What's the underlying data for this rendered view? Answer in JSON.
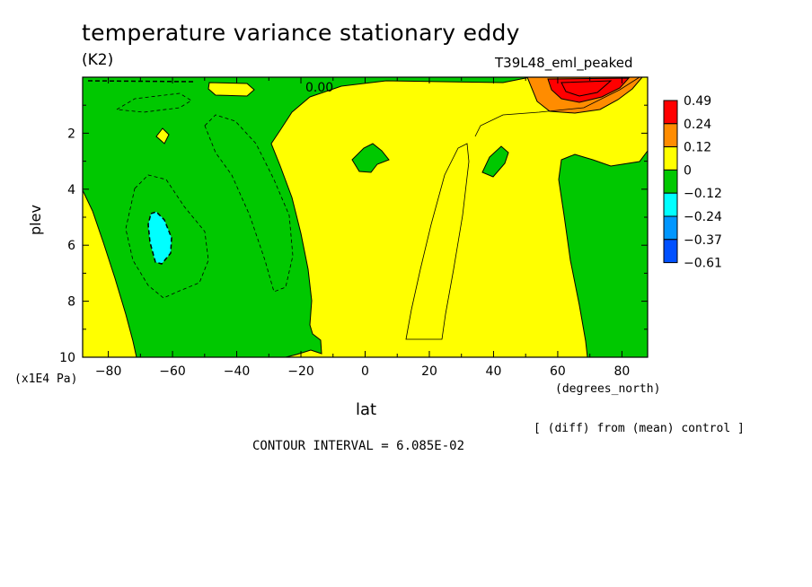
{
  "chart_data": {
    "type": "heatmap",
    "title": "temperature variance stationary eddy",
    "units": "(K2)",
    "run_label": "T39L48_eml_peaked",
    "xlabel": "lat",
    "x_units": "(degrees_north)",
    "ylabel": "plev",
    "y_units": "(x1E4 Pa)",
    "xlim": [
      -88,
      88
    ],
    "ylim": [
      10,
      0
    ],
    "x_ticks": [
      -80,
      -60,
      -40,
      -20,
      0,
      20,
      40,
      60,
      80
    ],
    "x_tick_labels": [
      "−80",
      "−60",
      "−40",
      "−20",
      "0",
      "20",
      "40",
      "60",
      "80"
    ],
    "y_ticks": [
      2,
      4,
      6,
      8,
      10
    ],
    "y_tick_labels": [
      "2",
      "4",
      "6",
      "8",
      "10"
    ],
    "contour_label": "0.00",
    "legend": {
      "labels": [
        "0.49",
        "0.24",
        "0.12",
        "0",
        "−0.12",
        "−0.24",
        "−0.37",
        "−0.61"
      ],
      "colors": [
        "#ff0000",
        "#ff8c00",
        "#ffff00",
        "#00c800",
        "#00ffff",
        "#0096ff",
        "#0050ff"
      ]
    },
    "note": "[ (diff) from (mean) control ]",
    "contour_interval": "CONTOUR INTERVAL = 6.085E-02"
  }
}
